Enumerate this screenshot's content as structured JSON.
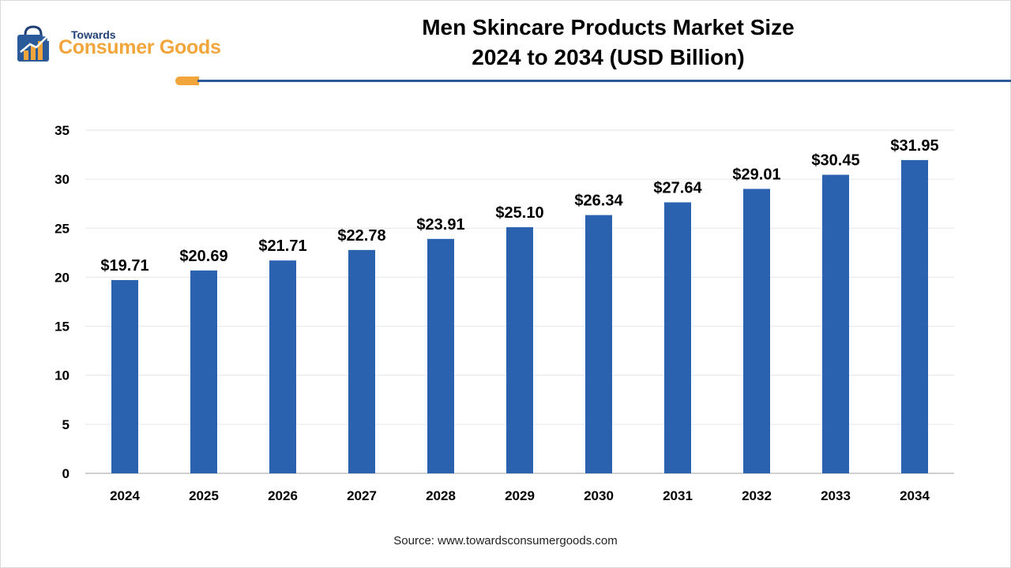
{
  "branding": {
    "logo_top": "Towards",
    "logo_main": "Consumer Goods",
    "logo_icon": "shopping-bag-chart-icon",
    "accent_color": "#f2a53a",
    "navy_color": "#1f3f75"
  },
  "header": {
    "title_line1": "Men Skincare Products Market Size",
    "title_line2": "2024 to 2034 (USD Billion)"
  },
  "footer": {
    "source": "Source: www.towardsconsumergoods.com"
  },
  "chart_data": {
    "type": "bar",
    "title": "Men Skincare Products Market Size 2024 to 2034 (USD Billion)",
    "xlabel": "",
    "ylabel": "",
    "categories": [
      "2024",
      "2025",
      "2026",
      "2027",
      "2028",
      "2029",
      "2030",
      "2031",
      "2032",
      "2033",
      "2034"
    ],
    "values": [
      19.71,
      20.69,
      21.71,
      22.78,
      23.91,
      25.1,
      26.34,
      27.64,
      29.01,
      30.45,
      31.95
    ],
    "value_labels": [
      "$19.71",
      "$20.69",
      "$21.71",
      "$22.78",
      "$23.91",
      "$25.10",
      "$26.34",
      "$27.64",
      "$29.01",
      "$30.45",
      "$31.95"
    ],
    "ylim": [
      0,
      35
    ],
    "yticks": [
      0,
      5,
      10,
      15,
      20,
      25,
      30,
      35
    ],
    "grid": true,
    "legend": "none",
    "bar_color": "#2a62b0"
  }
}
